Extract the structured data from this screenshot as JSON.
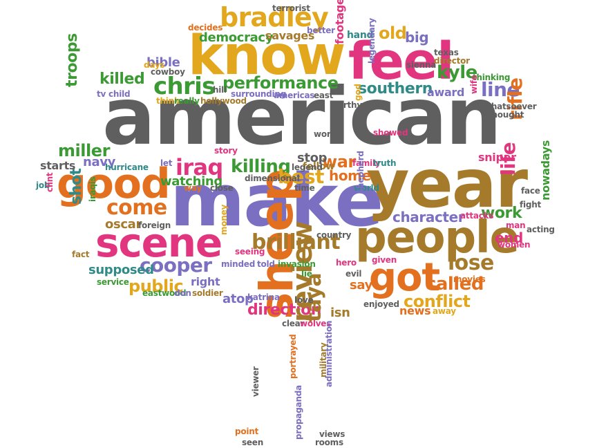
{
  "palette": {
    "gray": "#5f5f5f",
    "orange": "#e2701e",
    "purple": "#7b6fc1",
    "pink": "#e2357f",
    "green": "#3b9a33",
    "gold": "#e2a71c",
    "brown": "#a57b2b",
    "teal": "#2f8a88"
  },
  "words": [
    {
      "id": "american",
      "text": "american",
      "color": "gray"
    },
    {
      "id": "make",
      "text": "make",
      "color": "purple"
    },
    {
      "id": "year",
      "text": "year",
      "color": "brown"
    },
    {
      "id": "know",
      "text": "know",
      "color": "gold"
    },
    {
      "id": "feel",
      "text": "feel",
      "color": "pink"
    },
    {
      "id": "people",
      "text": "people",
      "color": "brown"
    },
    {
      "id": "scene",
      "text": "scene",
      "color": "pink"
    },
    {
      "id": "good",
      "text": "good",
      "color": "orange"
    },
    {
      "id": "sheep",
      "text": "sheep",
      "color": "orange"
    },
    {
      "id": "got",
      "text": "got",
      "color": "orange"
    },
    {
      "id": "bradley",
      "text": "bradley",
      "color": "gold"
    },
    {
      "id": "chris",
      "text": "chris",
      "color": "green"
    },
    {
      "id": "performance",
      "text": "performance",
      "color": "green"
    },
    {
      "id": "brilliant",
      "text": "brilliant",
      "color": "brown"
    },
    {
      "id": "cooper",
      "text": "cooper",
      "color": "purple"
    },
    {
      "id": "come",
      "text": "come",
      "color": "orange"
    },
    {
      "id": "lose",
      "text": "lose",
      "color": "brown"
    },
    {
      "id": "kyle",
      "text": "kyle",
      "color": "green"
    },
    {
      "id": "line",
      "text": "line",
      "color": "purple"
    },
    {
      "id": "southern",
      "text": "southern",
      "color": "teal"
    },
    {
      "id": "killed",
      "text": "killed",
      "color": "green"
    },
    {
      "id": "iraq",
      "text": "iraq",
      "color": "pink"
    },
    {
      "id": "killing",
      "text": "killing",
      "color": "green"
    },
    {
      "id": "best",
      "text": "best",
      "color": "gold"
    },
    {
      "id": "war",
      "text": "war",
      "color": "orange"
    },
    {
      "id": "public",
      "text": "public",
      "color": "gold"
    },
    {
      "id": "called",
      "text": "called",
      "color": "orange"
    },
    {
      "id": "conflict",
      "text": "conflict",
      "color": "gold"
    },
    {
      "id": "direction",
      "text": "direction",
      "color": "pink"
    },
    {
      "id": "character",
      "text": "character",
      "color": "purple"
    },
    {
      "id": "work",
      "text": "work",
      "color": "green"
    },
    {
      "id": "life",
      "text": "life",
      "color": "pink"
    },
    {
      "id": "rifle",
      "text": "rifle",
      "color": "orange"
    },
    {
      "id": "end",
      "text": "end",
      "color": "pink"
    },
    {
      "id": "old",
      "text": "old",
      "color": "gold"
    },
    {
      "id": "big",
      "text": "big",
      "color": "purple"
    },
    {
      "id": "miller",
      "text": "miller",
      "color": "green"
    },
    {
      "id": "troops",
      "text": "troops",
      "color": "green"
    },
    {
      "id": "review",
      "text": "review",
      "color": "brown"
    },
    {
      "id": "taya",
      "text": "taya",
      "color": "brown"
    },
    {
      "id": "shot",
      "text": "shot",
      "color": "teal"
    },
    {
      "id": "oscar",
      "text": "oscar",
      "color": "brown"
    },
    {
      "id": "watching",
      "text": "watching",
      "color": "green"
    },
    {
      "id": "home",
      "text": "home",
      "color": "orange"
    },
    {
      "id": "navy",
      "text": "navy",
      "color": "purple"
    },
    {
      "id": "starts",
      "text": "starts",
      "color": "gray"
    },
    {
      "id": "stop",
      "text": "stop",
      "color": "gray"
    },
    {
      "id": "democracy",
      "text": "democracy",
      "color": "green"
    },
    {
      "id": "savages",
      "text": "savages",
      "color": "brown"
    },
    {
      "id": "bible",
      "text": "bible",
      "color": "purple"
    },
    {
      "id": "cowboy",
      "text": "cowboy",
      "color": "gray"
    },
    {
      "id": "award",
      "text": "award",
      "color": "purple"
    },
    {
      "id": "sniper",
      "text": "sniper",
      "color": "pink"
    },
    {
      "id": "say",
      "text": "say",
      "color": "orange"
    },
    {
      "id": "right",
      "text": "right",
      "color": "purple"
    },
    {
      "id": "supposed",
      "text": "supposed",
      "color": "teal"
    },
    {
      "id": "atop",
      "text": "atop",
      "color": "purple"
    },
    {
      "id": "isn",
      "text": "isn",
      "color": "brown"
    },
    {
      "id": "news",
      "text": "news",
      "color": "orange"
    },
    {
      "id": "hand",
      "text": "hand",
      "color": "teal"
    },
    {
      "id": "footage",
      "text": "footage",
      "color": "pink"
    },
    {
      "id": "nowadays",
      "text": "nowadays",
      "color": "green"
    },
    {
      "id": "fellow",
      "text": "fellow",
      "color": "brown"
    },
    {
      "id": "texas",
      "text": "texas",
      "color": "gray"
    },
    {
      "id": "director",
      "text": "director",
      "color": "brown"
    },
    {
      "id": "thinking",
      "text": "thinking",
      "color": "green"
    },
    {
      "id": "whatsoever",
      "text": "whatsoever",
      "color": "gray"
    },
    {
      "id": "thought",
      "text": "thought",
      "color": "gray"
    },
    {
      "id": "wife",
      "text": "wife",
      "color": "pink"
    },
    {
      "id": "face",
      "text": "face",
      "color": "gray"
    },
    {
      "id": "fight",
      "text": "fight",
      "color": "gray"
    },
    {
      "id": "acting",
      "text": "acting",
      "color": "gray"
    },
    {
      "id": "women",
      "text": "women",
      "color": "pink"
    },
    {
      "id": "man",
      "text": "man",
      "color": "pink"
    },
    {
      "id": "attacks",
      "text": "attacks",
      "color": "pink"
    },
    {
      "id": "terrorist",
      "text": "terrorist",
      "color": "gray"
    },
    {
      "id": "decides",
      "text": "decides",
      "color": "orange"
    },
    {
      "id": "better",
      "text": "better",
      "color": "purple"
    },
    {
      "id": "legendary",
      "text": "legendary",
      "color": "purple"
    },
    {
      "id": "sienna",
      "text": "sienna",
      "color": "gray"
    },
    {
      "id": "days",
      "text": "days",
      "color": "gold"
    },
    {
      "id": "hill",
      "text": "hill",
      "color": "gray"
    },
    {
      "id": "surrounding",
      "text": "surrounding",
      "color": "purple"
    },
    {
      "id": "americas",
      "text": "americas",
      "color": "purple"
    },
    {
      "id": "tvchild",
      "text": "tv child",
      "color": "purple"
    },
    {
      "id": "think",
      "text": "think",
      "color": "gold"
    },
    {
      "id": "really",
      "text": "really",
      "color": "green"
    },
    {
      "id": "hollywood",
      "text": "hollywood",
      "color": "brown"
    },
    {
      "id": "east",
      "text": "east",
      "color": "gray"
    },
    {
      "id": "worthy",
      "text": "worthy",
      "color": "gray"
    },
    {
      "id": "god",
      "text": "god",
      "color": "gold"
    },
    {
      "id": "showed",
      "text": "showed",
      "color": "pink"
    },
    {
      "id": "worst",
      "text": "worst",
      "color": "gray"
    },
    {
      "id": "story",
      "text": "story",
      "color": "pink"
    },
    {
      "id": "family",
      "text": "family",
      "color": "pink"
    },
    {
      "id": "truth",
      "text": "truth",
      "color": "teal"
    },
    {
      "id": "hurricane",
      "text": "hurricane",
      "color": "teal"
    },
    {
      "id": "let",
      "text": "let",
      "color": "purple"
    },
    {
      "id": "legend",
      "text": "legend",
      "color": "gray"
    },
    {
      "id": "dimensional",
      "text": "dimensional",
      "color": "gray"
    },
    {
      "id": "way",
      "text": "way",
      "color": "orange"
    },
    {
      "id": "close",
      "text": "close",
      "color": "gray"
    },
    {
      "id": "time",
      "text": "time",
      "color": "gray"
    },
    {
      "id": "world",
      "text": "world",
      "color": "teal"
    },
    {
      "id": "job",
      "text": "job",
      "color": "teal"
    },
    {
      "id": "clint",
      "text": "clint",
      "color": "pink"
    },
    {
      "id": "iraqis",
      "text": "iraqis",
      "color": "green"
    },
    {
      "id": "foreign",
      "text": "foreign",
      "color": "gray"
    },
    {
      "id": "shepherd",
      "text": "shepherd",
      "color": "purple"
    },
    {
      "id": "country",
      "text": "country",
      "color": "gray"
    },
    {
      "id": "money",
      "text": "money",
      "color": "gold"
    },
    {
      "id": "seeing",
      "text": "seeing",
      "color": "pink"
    },
    {
      "id": "minded",
      "text": "minded",
      "color": "purple"
    },
    {
      "id": "told",
      "text": "told",
      "color": "purple"
    },
    {
      "id": "invasion",
      "text": "invasion",
      "color": "green"
    },
    {
      "id": "lie",
      "text": "lie",
      "color": "green"
    },
    {
      "id": "hero",
      "text": "hero",
      "color": "pink"
    },
    {
      "id": "given",
      "text": "given",
      "color": "pink"
    },
    {
      "id": "evil",
      "text": "evil",
      "color": "gray"
    },
    {
      "id": "fact",
      "text": "fact",
      "color": "brown"
    },
    {
      "id": "service",
      "text": "service",
      "color": "green"
    },
    {
      "id": "eastwood",
      "text": "eastwood",
      "color": "green"
    },
    {
      "id": "don",
      "text": "don",
      "color": "purple"
    },
    {
      "id": "soldier",
      "text": "soldier",
      "color": "brown"
    },
    {
      "id": "katrina",
      "text": "katrina",
      "color": "purple"
    },
    {
      "id": "love",
      "text": "love",
      "color": "gray"
    },
    {
      "id": "enjoyed",
      "text": "enjoyed",
      "color": "gray"
    },
    {
      "id": "away",
      "text": "away",
      "color": "gold"
    },
    {
      "id": "movies",
      "text": "movies",
      "color": "orange"
    },
    {
      "id": "clear",
      "text": "clear",
      "color": "gray"
    },
    {
      "id": "wolves",
      "text": "wolves",
      "color": "pink"
    },
    {
      "id": "portrayed",
      "text": "portrayed",
      "color": "orange"
    },
    {
      "id": "military",
      "text": "military",
      "color": "brown"
    },
    {
      "id": "administration",
      "text": "administration",
      "color": "purple"
    },
    {
      "id": "viewer",
      "text": "viewer",
      "color": "gray"
    },
    {
      "id": "point",
      "text": "point",
      "color": "orange"
    },
    {
      "id": "seen",
      "text": "seen",
      "color": "gray"
    },
    {
      "id": "propaganda",
      "text": "propaganda",
      "color": "purple"
    },
    {
      "id": "views",
      "text": "views",
      "color": "gray"
    },
    {
      "id": "rooms",
      "text": "rooms",
      "color": "gray"
    }
  ]
}
